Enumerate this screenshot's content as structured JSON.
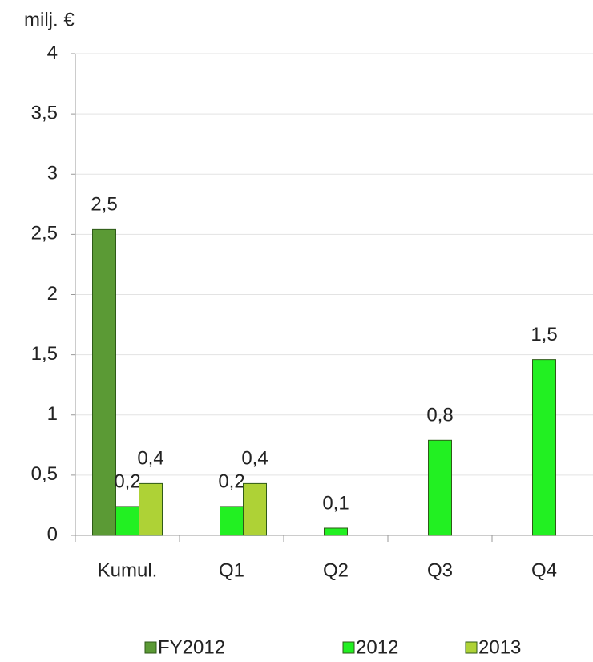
{
  "chart_data": {
    "type": "bar",
    "y_axis_label": "milj. €",
    "categories": [
      "Kumul.",
      "Q1",
      "Q2",
      "Q3",
      "Q4"
    ],
    "series": [
      {
        "name": "FY2012",
        "color": "#5b9a35",
        "values": [
          2.54,
          null,
          null,
          null,
          null
        ],
        "value_labels": [
          "2,5",
          null,
          null,
          null,
          null
        ]
      },
      {
        "name": "2012",
        "color": "#22f022",
        "values": [
          0.24,
          0.24,
          0.06,
          0.79,
          1.46
        ],
        "value_labels": [
          "0,2",
          "0,2",
          "0,1",
          "0,8",
          "1,5"
        ]
      },
      {
        "name": "2013",
        "color": "#aed236",
        "values": [
          0.43,
          0.43,
          null,
          null,
          null
        ],
        "value_labels": [
          "0,4",
          "0,4",
          null,
          null,
          null
        ]
      }
    ],
    "ylim": [
      0,
      4
    ],
    "yticks": [
      0,
      {
        "value": 0.5,
        "label": "0,5"
      },
      1,
      {
        "value": 1.5,
        "label": "1,5"
      },
      2,
      {
        "value": 2.5,
        "label": "2,5"
      },
      3,
      {
        "value": 3.5,
        "label": "3,5"
      },
      4
    ],
    "grid": true,
    "legend": "bottom"
  }
}
